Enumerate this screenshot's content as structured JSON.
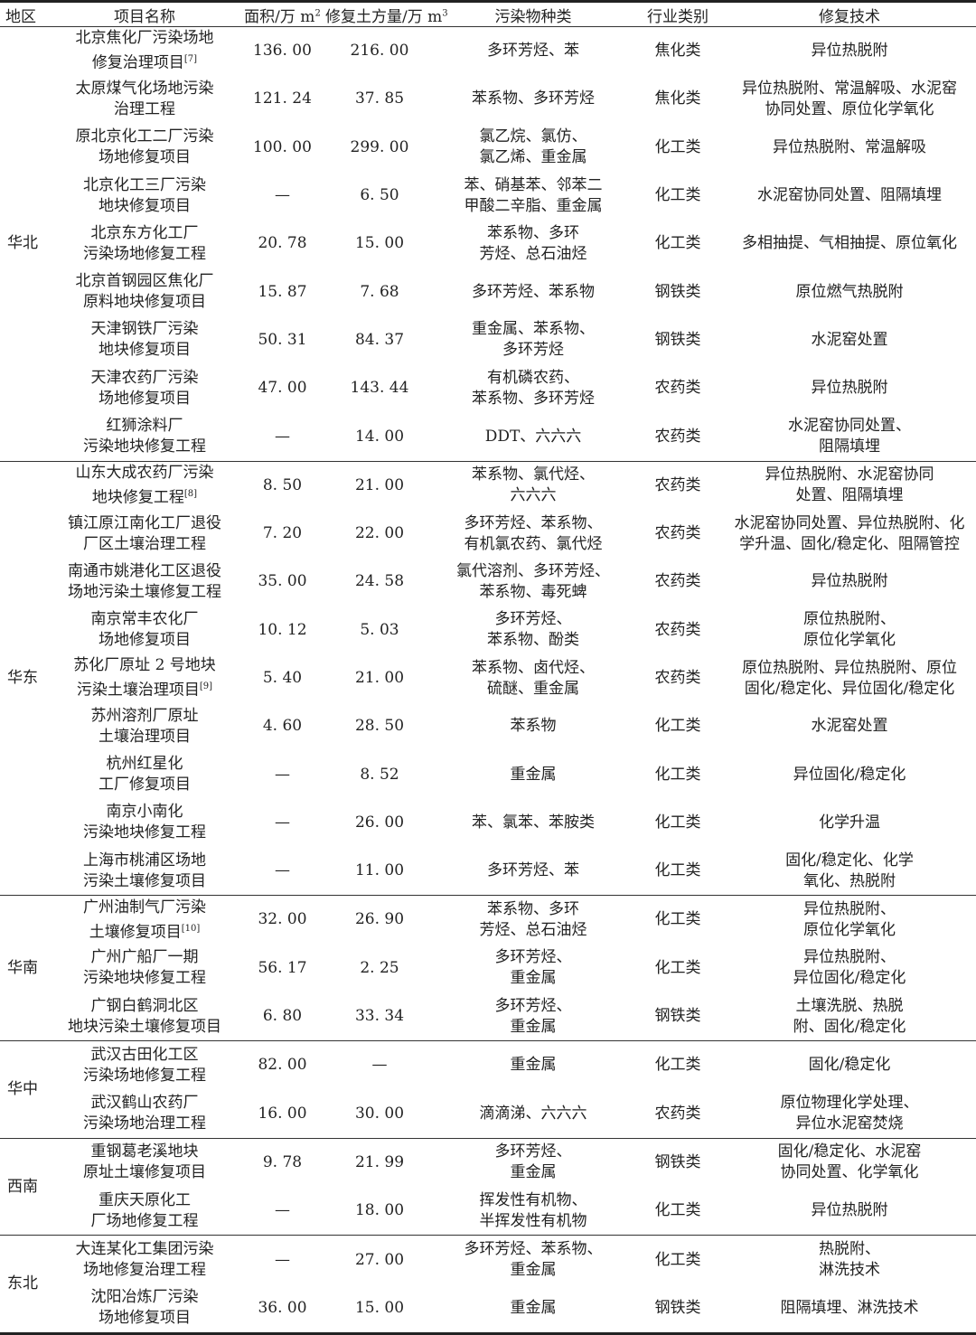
{
  "headers": {
    "region": "地区",
    "name": "项目名称",
    "area": "面积/万 m",
    "area_sup": "2",
    "volume": "修复土方量/万 m",
    "volume_sup": "3",
    "pollutant": "污染物种类",
    "industry": "行业类别",
    "tech": "修复技术"
  },
  "groups": [
    {
      "region": "华北",
      "rows": [
        {
          "name": "北京焦化厂污染场地\n修复治理项目",
          "ref": "[7]",
          "area": "136. 00",
          "volume": "216. 00",
          "pollutant": "多环芳烃、苯",
          "industry": "焦化类",
          "tech": "异位热脱附"
        },
        {
          "name": "太原煤气化场地污染\n治理工程",
          "area": "121. 24",
          "volume": "37. 85",
          "pollutant": "苯系物、多环芳烃",
          "industry": "焦化类",
          "tech": "异位热脱附、常温解吸、水泥窑\n协同处置、原位化学氧化"
        },
        {
          "name": "原北京化工二厂污染\n场地修复项目",
          "area": "100. 00",
          "volume": "299. 00",
          "pollutant": "氯乙烷、氯仿、\n氯乙烯、重金属",
          "industry": "化工类",
          "tech": "异位热脱附、常温解吸"
        },
        {
          "name": "北京化工三厂污染\n地块修复项目",
          "area": "—",
          "volume": "6. 50",
          "pollutant": "苯、硝基苯、邻苯二\n甲酸二辛脂、重金属",
          "industry": "化工类",
          "tech": "水泥窑协同处置、阻隔填埋"
        },
        {
          "name": "北京东方化工厂\n污染场地修复工程",
          "area": "20. 78",
          "volume": "15. 00",
          "pollutant": "苯系物、多环\n芳烃、总石油烃",
          "industry": "化工类",
          "tech": "多相抽提、气相抽提、原位氧化"
        },
        {
          "name": "北京首钢园区焦化厂\n原料地块修复项目",
          "area": "15. 87",
          "volume": "7. 68",
          "pollutant": "多环芳烃、苯系物",
          "industry": "钢铁类",
          "tech": "原位燃气热脱附"
        },
        {
          "name": "天津钢铁厂污染\n地块修复项目",
          "area": "50. 31",
          "volume": "84. 37",
          "pollutant": "重金属、苯系物、\n多环芳烃",
          "industry": "钢铁类",
          "tech": "水泥窑处置"
        },
        {
          "name": "天津农药厂污染\n场地修复项目",
          "area": "47. 00",
          "volume": "143. 44",
          "pollutant": "有机磷农药、\n苯系物、多环芳烃",
          "industry": "农药类",
          "tech": "异位热脱附"
        },
        {
          "name": "红狮涂料厂\n污染地块修复工程",
          "area": "—",
          "volume": "14. 00",
          "pollutant": "DDT、六六六",
          "industry": "农药类",
          "tech": "水泥窑协同处置、\n阻隔填埋"
        }
      ]
    },
    {
      "region": "华东",
      "rows": [
        {
          "name": "山东大成农药厂污染\n地块修复工程",
          "ref": "[8]",
          "area": "8. 50",
          "volume": "21. 00",
          "pollutant": "苯系物、氯代烃、\n六六六",
          "industry": "农药类",
          "tech": "异位热脱附、水泥窑协同\n处置、阻隔填埋"
        },
        {
          "name": "镇江原江南化工厂退役\n厂区土壤治理工程",
          "area": "7. 20",
          "volume": "22. 00",
          "pollutant": "多环芳烃、苯系物、\n有机氯农药、氯代烃",
          "industry": "农药类",
          "tech": "水泥窑协同处置、异位热脱附、化\n学升温、固化/稳定化、阻隔管控"
        },
        {
          "name": "南通市姚港化工区退役\n场地污染土壤修复工程",
          "area": "35. 00",
          "volume": "24. 58",
          "pollutant": "氯代溶剂、多环芳烃、\n苯系物、毒死蜱",
          "industry": "农药类",
          "tech": "异位热脱附"
        },
        {
          "name": "南京常丰农化厂\n场地修复项目",
          "area": "10. 12",
          "volume": "5. 03",
          "pollutant": "多环芳烃、\n苯系物、酚类",
          "industry": "农药类",
          "tech": "原位热脱附、\n原位化学氧化"
        },
        {
          "name": "苏化厂原址 2 号地块\n污染土壤治理项目",
          "ref": "[9]",
          "area": "5. 40",
          "volume": "21. 00",
          "pollutant": "苯系物、卤代烃、\n硫醚、重金属",
          "industry": "农药类",
          "tech": "原位热脱附、异位热脱附、原位\n固化/稳定化、异位固化/稳定化"
        },
        {
          "name": "苏州溶剂厂原址\n土壤治理项目",
          "area": "4. 60",
          "volume": "28. 50",
          "pollutant": "苯系物",
          "industry": "化工类",
          "tech": "水泥窑处置"
        },
        {
          "name": "杭州红星化\n工厂修复项目",
          "area": "—",
          "volume": "8. 52",
          "pollutant": "重金属",
          "industry": "化工类",
          "tech": "异位固化/稳定化"
        },
        {
          "name": "南京小南化\n污染地块修复工程",
          "area": "—",
          "volume": "26. 00",
          "pollutant": "苯、氯苯、苯胺类",
          "industry": "化工类",
          "tech": "化学升温"
        },
        {
          "name": "上海市桃浦区场地\n污染土壤修复项目",
          "area": "—",
          "volume": "11. 00",
          "pollutant": "多环芳烃、苯",
          "industry": "化工类",
          "tech": "固化/稳定化、化学\n氧化、热脱附"
        }
      ]
    },
    {
      "region": "华南",
      "rows": [
        {
          "name": "广州油制气厂污染\n土壤修复项目",
          "ref": "[10]",
          "area": "32. 00",
          "volume": "26. 90",
          "pollutant": "苯系物、多环\n芳烃、总石油烃",
          "industry": "化工类",
          "tech": "异位热脱附、\n原位化学氧化"
        },
        {
          "name": "广州广船厂一期\n污染地块修复工程",
          "area": "56. 17",
          "volume": "2. 25",
          "pollutant": "多环芳烃、\n重金属",
          "industry": "化工类",
          "tech": "异位热脱附、\n异位固化/稳定化"
        },
        {
          "name": "广钢白鹤洞北区\n地块污染土壤修复项目",
          "area": "6. 80",
          "volume": "33. 34",
          "pollutant": "多环芳烃、\n重金属",
          "industry": "钢铁类",
          "tech": "土壤洗脱、热脱\n附、固化/稳定化"
        }
      ]
    },
    {
      "region": "华中",
      "rows": [
        {
          "name": "武汉古田化工区\n污染场地修复工程",
          "area": "82. 00",
          "volume": "—",
          "pollutant": "重金属",
          "industry": "化工类",
          "tech": "固化/稳定化"
        },
        {
          "name": "武汉鹤山农药厂\n污染场地治理工程",
          "area": "16. 00",
          "volume": "30. 00",
          "pollutant": "滴滴涕、六六六",
          "industry": "农药类",
          "tech": "原位物理化学处理、\n异位水泥窑焚烧"
        }
      ]
    },
    {
      "region": "西南",
      "rows": [
        {
          "name": "重钢葛老溪地块\n原址土壤修复项目",
          "area": "9. 78",
          "volume": "21. 99",
          "pollutant": "多环芳烃、\n重金属",
          "industry": "钢铁类",
          "tech": "固化/稳定化、水泥窑\n协同处置、化学氧化"
        },
        {
          "name": "重庆天原化工\n厂场地修复工程",
          "area": "—",
          "volume": "18. 00",
          "pollutant": "挥发性有机物、\n半挥发性有机物",
          "industry": "化工类",
          "tech": "异位热脱附"
        }
      ]
    },
    {
      "region": "东北",
      "rows": [
        {
          "name": "大连某化工集团污染\n场地修复治理工程",
          "area": "—",
          "volume": "27. 00",
          "pollutant": "多环芳烃、苯系物、\n重金属",
          "industry": "化工类",
          "tech": "热脱附、\n淋洗技术"
        },
        {
          "name": "沈阳冶炼厂污染\n场地修复项目",
          "area": "36. 00",
          "volume": "15. 00",
          "pollutant": "重金属",
          "industry": "钢铁类",
          "tech": "阻隔填埋、淋洗技术"
        }
      ]
    }
  ]
}
